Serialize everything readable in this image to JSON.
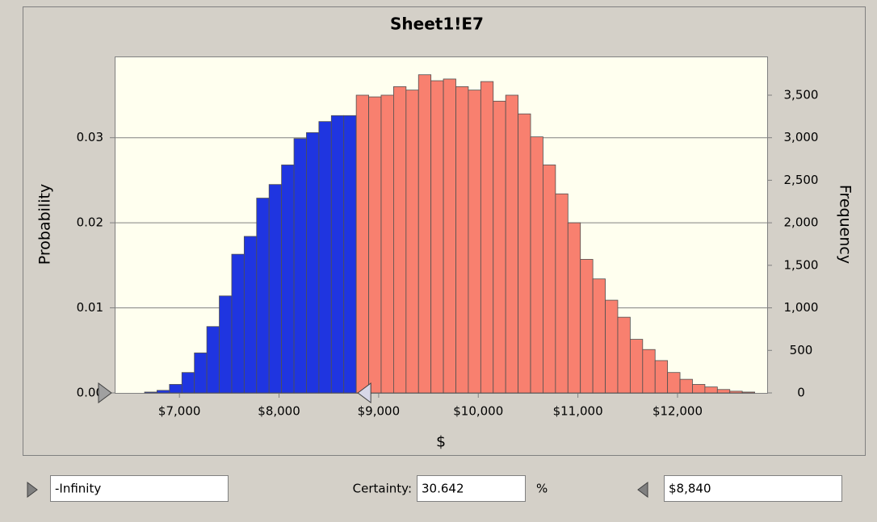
{
  "chart_data": {
    "type": "histogram",
    "title": "Sheet1!E7",
    "xlabel": "$",
    "ylabel": "Frequency",
    "y2label": "Probability",
    "bins": [
      6650,
      6775,
      6900,
      7025,
      7150,
      7275,
      7400,
      7525,
      7650,
      7775,
      7900,
      8025,
      8150,
      8275,
      8400,
      8525,
      8650,
      8775,
      8900,
      9025,
      9150,
      9275,
      9400,
      9525,
      9650,
      9775,
      9900,
      10025,
      10150,
      10275,
      10400,
      10525,
      10650,
      10775,
      10900,
      11025,
      11150,
      11275,
      11400,
      11525,
      11650,
      11775,
      11900,
      12025,
      12150,
      12275,
      12400,
      12525,
      12650,
      12775
    ],
    "counts": [
      10,
      30,
      100,
      240,
      470,
      780,
      1140,
      1630,
      1840,
      2290,
      2450,
      2680,
      2990,
      3060,
      3190,
      3260,
      3260,
      3500,
      3480,
      3500,
      3600,
      3560,
      3740,
      3670,
      3690,
      3600,
      3560,
      3660,
      3430,
      3500,
      3280,
      3010,
      2680,
      2340,
      2000,
      1570,
      1340,
      1090,
      890,
      630,
      510,
      380,
      240,
      160,
      100,
      70,
      40,
      20,
      10
    ],
    "colors": {
      "inside": "#1f35e0",
      "outside": "#f8806f"
    },
    "xlim": [
      6350,
      12900
    ],
    "xticks": [
      {
        "value": 7000,
        "label": "$7,000"
      },
      {
        "value": 8000,
        "label": "$8,000"
      },
      {
        "value": 9000,
        "label": "$9,000"
      },
      {
        "value": 10000,
        "label": "$10,000"
      },
      {
        "value": 11000,
        "label": "$11,000"
      },
      {
        "value": 12000,
        "label": "$12,000"
      }
    ],
    "ylim": [
      0,
      3955
    ],
    "yticks": [
      0,
      500,
      {
        "value": 1000,
        "label": "1,000"
      },
      {
        "value": 1500,
        "label": "1,500"
      },
      {
        "value": 2000,
        "label": "2,000"
      },
      {
        "value": 2500,
        "label": "2,500"
      },
      {
        "value": 3000,
        "label": "3,000"
      },
      {
        "value": 3500,
        "label": "3,500"
      }
    ],
    "y2lim": [
      0,
      0.03955
    ],
    "y2ticks": [
      {
        "value": 0,
        "label": "0.00"
      },
      0.01,
      0.02,
      0.03
    ],
    "grid": true
  },
  "controls": {
    "lower": "-Infinity",
    "certainty_label": "Certainty:",
    "certainty": "30.642",
    "percent": "%",
    "upper": {
      "value": 8840,
      "label": "$8,840"
    }
  }
}
